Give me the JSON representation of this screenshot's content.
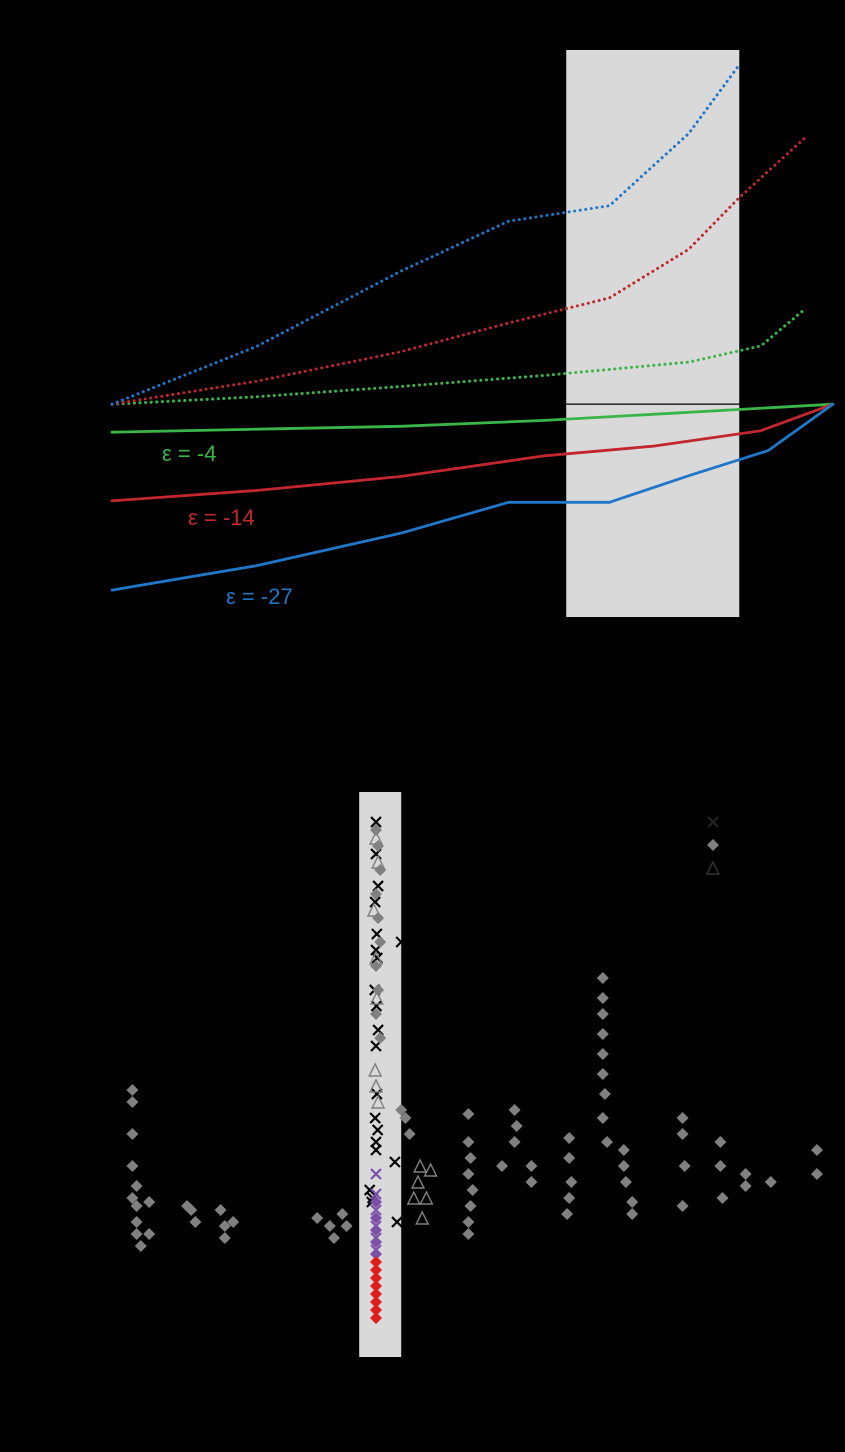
{
  "chart_data": [
    {
      "type": "line",
      "title": "",
      "xlabel": "",
      "ylabel": "",
      "xlim": [
        0,
        1
      ],
      "ylim": [
        -2.6,
        4.8
      ],
      "highlight_region": {
        "x": [
          0.63,
          0.87
        ],
        "color": "#d9d9d9"
      },
      "baseline": {
        "y": 0,
        "x": [
          0.63,
          0.87
        ]
      },
      "series": [
        {
          "name": "ε = -4",
          "style": "solid",
          "color": "#3ab54a",
          "x": [
            0,
            0.2,
            0.4,
            0.6,
            0.8,
            1.0
          ],
          "y": [
            -0.38,
            -0.34,
            -0.3,
            -0.22,
            -0.11,
            0.0
          ]
        },
        {
          "name": "ε = -14",
          "style": "solid",
          "color": "#c1272d",
          "x": [
            0,
            0.2,
            0.4,
            0.6,
            0.75,
            0.9,
            1.0
          ],
          "y": [
            -1.31,
            -1.17,
            -0.98,
            -0.7,
            -0.57,
            -0.36,
            0.0
          ]
        },
        {
          "name": "ε = -27",
          "style": "solid",
          "color": "#1f77c9",
          "x": [
            0,
            0.2,
            0.4,
            0.55,
            0.69,
            0.8,
            0.91,
            1.0
          ],
          "y": [
            -2.52,
            -2.19,
            -1.75,
            -1.33,
            -1.33,
            -0.97,
            -0.63,
            0.0
          ]
        },
        {
          "name": "",
          "style": "dotted",
          "color": "#3ab54a",
          "x": [
            0,
            0.2,
            0.4,
            0.6,
            0.8,
            0.9,
            0.96
          ],
          "y": [
            0.0,
            0.1,
            0.24,
            0.39,
            0.57,
            0.79,
            1.28
          ]
        },
        {
          "name": "",
          "style": "dotted",
          "color": "#c1272d",
          "x": [
            0,
            0.2,
            0.4,
            0.55,
            0.69,
            0.8,
            0.87,
            0.96
          ],
          "y": [
            0.0,
            0.31,
            0.71,
            1.1,
            1.44,
            2.1,
            2.8,
            3.6
          ]
        },
        {
          "name": "",
          "style": "dotted",
          "color": "#1f77c9",
          "x": [
            0,
            0.2,
            0.4,
            0.55,
            0.69,
            0.8,
            0.87
          ],
          "y": [
            0.0,
            0.78,
            1.8,
            2.48,
            2.69,
            3.67,
            4.6
          ]
        }
      ]
    },
    {
      "type": "scatter",
      "title": "",
      "xlabel": "",
      "ylabel": "",
      "xlim": [
        0,
        19
      ],
      "ylim": [
        0,
        7
      ],
      "highlight_region": {
        "x": [
          7.6,
          8.6
        ],
        "color": "#d9d9d9"
      },
      "legend": {
        "position": "top-right",
        "markers": [
          "×",
          "◆",
          "△"
        ]
      },
      "series": [
        {
          "name": "",
          "marker": "cross",
          "color": "#000000",
          "label": "in-band crosses",
          "x": [
            8.0,
            8.0,
            8.05,
            7.98,
            8.02,
            8.0,
            8.03,
            7.97,
            8.01,
            8.05,
            8.0,
            8.02,
            7.98,
            8.04,
            8.0,
            8.0,
            8.6,
            7.92,
            7.85,
            7.9,
            8.45,
            8.5
          ],
          "y": [
            6.6,
            6.2,
            5.8,
            5.6,
            5.2,
            5.0,
            4.9,
            4.5,
            4.3,
            4.0,
            3.8,
            3.2,
            2.9,
            2.75,
            2.5,
            2.6,
            5.1,
            1.9,
            2.0,
            1.85,
            2.35,
            1.6
          ]
        },
        {
          "name": "",
          "marker": "diamond",
          "color": "#808080",
          "label": "grey diamonds",
          "x": [
            2.2,
            2.2,
            2.2,
            2.2,
            2.2,
            2.3,
            2.3,
            2.3,
            2.3,
            2.4,
            2.6,
            2.6,
            3.5,
            3.6,
            3.7,
            4.3,
            4.4,
            4.4,
            4.6,
            6.6,
            6.9,
            7.0,
            7.2,
            7.3,
            8.0,
            8.05,
            8.1,
            8.0,
            8.05,
            8.1,
            8.0,
            8.05,
            8.0,
            8.1,
            8.6,
            8.7,
            8.8,
            10.2,
            10.2,
            10.25,
            10.2,
            10.3,
            10.25,
            10.2,
            10.2,
            11.0,
            11.3,
            11.35,
            11.3,
            11.7,
            11.7,
            12.6,
            12.6,
            12.65,
            12.6,
            12.55,
            13.4,
            13.4,
            13.4,
            13.4,
            13.4,
            13.4,
            13.45,
            13.4,
            13.5,
            13.9,
            13.9,
            13.95,
            14.1,
            14.1,
            15.3,
            15.3,
            15.35,
            15.3,
            16.2,
            16.2,
            16.25,
            16.8,
            16.8,
            17.4,
            18.5,
            18.5
          ],
          "y": [
            3.25,
            3.1,
            2.7,
            2.3,
            1.9,
            2.05,
            1.8,
            1.6,
            1.45,
            1.3,
            1.85,
            1.45,
            1.8,
            1.75,
            1.6,
            1.75,
            1.55,
            1.4,
            1.6,
            1.65,
            1.55,
            1.4,
            1.7,
            1.55,
            6.5,
            6.3,
            6.0,
            5.7,
            5.4,
            5.1,
            4.8,
            4.5,
            4.2,
            3.9,
            3.0,
            2.9,
            2.7,
            2.95,
            2.6,
            2.4,
            2.2,
            2.0,
            1.8,
            1.6,
            1.45,
            2.3,
            3.0,
            2.8,
            2.6,
            2.3,
            2.1,
            2.65,
            2.4,
            2.1,
            1.9,
            1.7,
            4.65,
            4.4,
            4.2,
            3.95,
            3.7,
            3.45,
            3.2,
            2.9,
            2.6,
            2.5,
            2.3,
            2.1,
            1.85,
            1.7,
            2.9,
            2.7,
            2.3,
            1.8,
            2.6,
            2.3,
            1.9,
            2.2,
            2.05,
            2.1,
            2.5,
            2.2
          ]
        },
        {
          "name": "",
          "marker": "triangle",
          "color": "#808080",
          "label": "grey triangles",
          "x": [
            8.0,
            8.05,
            7.95,
            8.0,
            8.02,
            7.98,
            8.0,
            8.05,
            8.9,
            9.0,
            9.05,
            9.1,
            9.2,
            9.3
          ],
          "y": [
            6.4,
            6.1,
            5.5,
            4.9,
            4.4,
            3.5,
            3.3,
            3.1,
            1.9,
            2.1,
            2.3,
            1.65,
            1.9,
            2.25
          ]
        },
        {
          "name": "",
          "marker": "cross",
          "color": "#7b4fa8",
          "label": "purple crosses",
          "x": [
            8.0,
            8.0,
            8.0,
            8.0,
            8.0,
            8.0
          ],
          "y": [
            2.2,
            1.95,
            1.75,
            1.55,
            1.4,
            1.25
          ]
        },
        {
          "name": "",
          "marker": "diamond",
          "color": "#7b4fa8",
          "label": "purple diamonds",
          "x": [
            8.0,
            8.0,
            8.0,
            8.0,
            8.0
          ],
          "y": [
            1.85,
            1.65,
            1.5,
            1.35,
            1.2
          ]
        },
        {
          "name": "",
          "marker": "diamond",
          "color": "#e01d1d",
          "label": "red diamonds",
          "x": [
            8.0,
            8.0,
            8.0,
            8.0,
            8.0,
            8.0,
            8.0,
            8.0
          ],
          "y": [
            1.1,
            1.0,
            0.9,
            0.8,
            0.7,
            0.6,
            0.5,
            0.4
          ]
        }
      ]
    }
  ]
}
